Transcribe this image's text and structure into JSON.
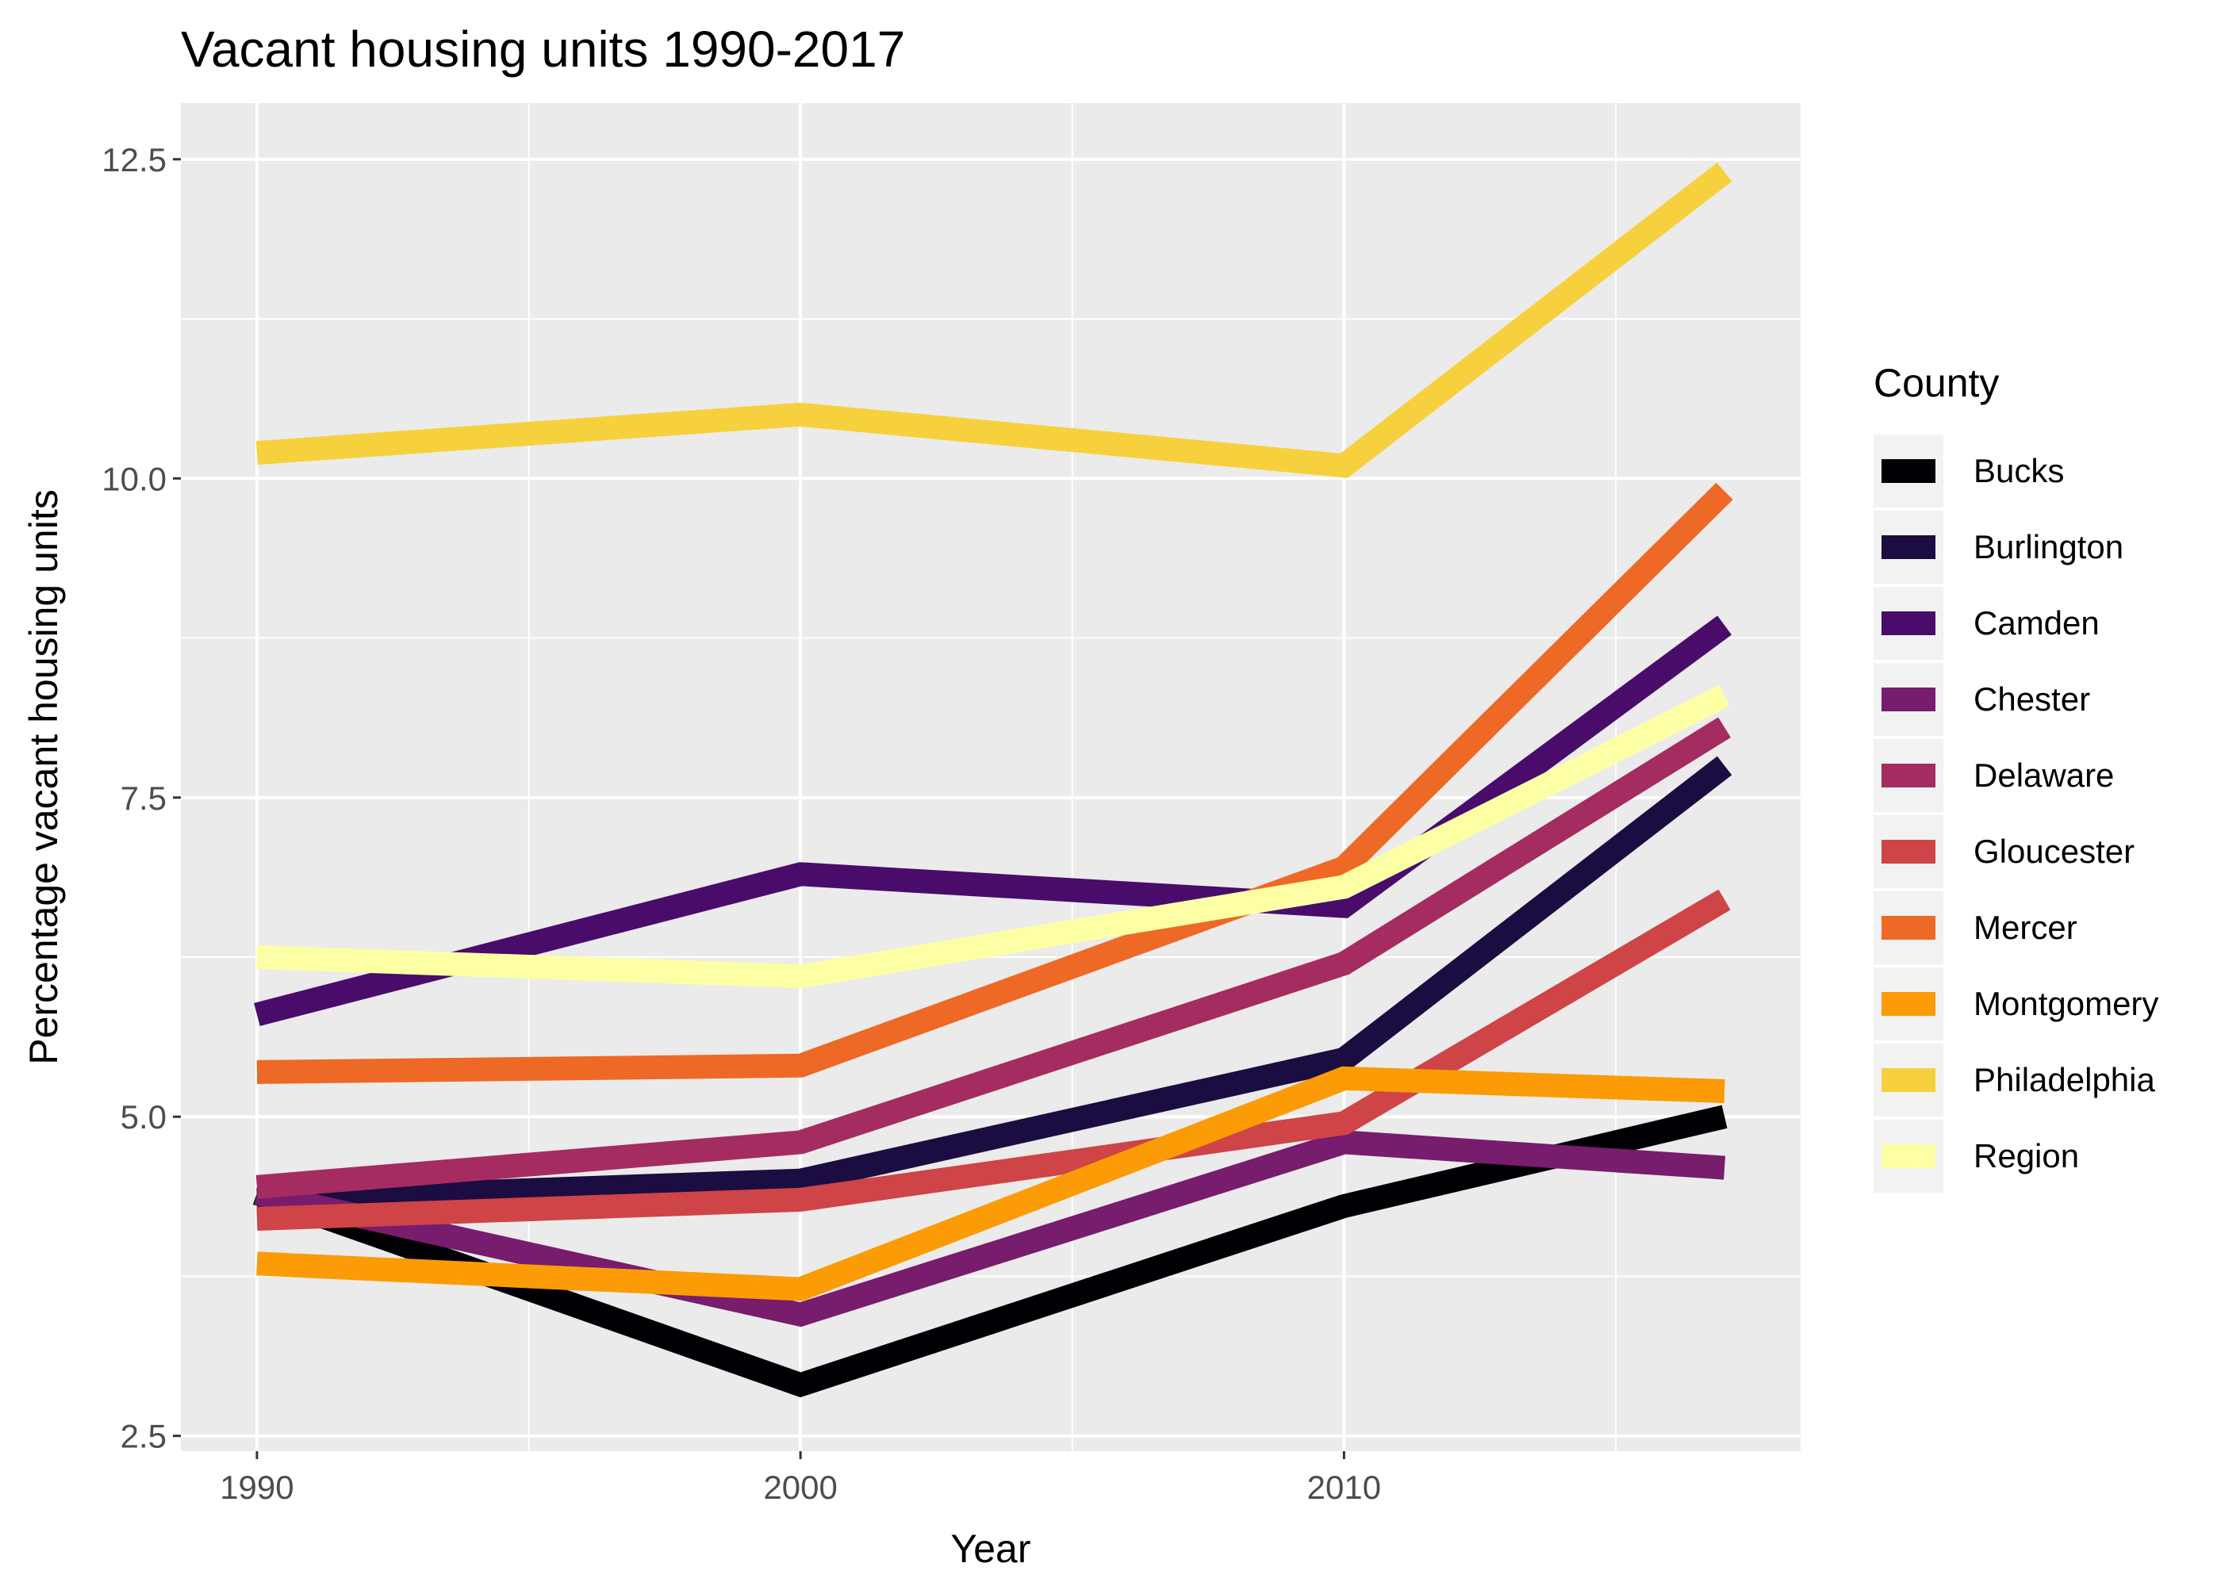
{
  "chart_data": {
    "type": "line",
    "title": "Vacant housing units 1990-2017",
    "xlabel": "Year",
    "ylabel": "Percentage vacant housing units",
    "xlim": [
      1988.6,
      2018.4
    ],
    "ylim": [
      2.38,
      12.94
    ],
    "x_ticks": [
      1990,
      2000,
      2010
    ],
    "x_tick_labels": [
      "1990",
      "2000",
      "2010"
    ],
    "x_minor_ticks": [
      1995,
      2005,
      2015
    ],
    "y_ticks": [
      2.5,
      5.0,
      7.5,
      10.0,
      12.5
    ],
    "y_tick_labels": [
      "2.5",
      "5.0",
      "7.5",
      "10.0",
      "12.5"
    ],
    "y_minor_ticks": [
      3.75,
      6.25,
      8.75,
      11.25
    ],
    "grid": true,
    "panel_background": "#ebebeb",
    "legend_title": "County",
    "legend_position": "right",
    "x": [
      1990,
      2000,
      2010,
      2017
    ],
    "series": [
      {
        "name": "Bucks",
        "color": "#000004",
        "values": [
          4.4,
          2.9,
          4.3,
          5.0
        ]
      },
      {
        "name": "Burlington",
        "color": "#1b0c41",
        "values": [
          4.35,
          4.5,
          5.45,
          7.75
        ]
      },
      {
        "name": "Camden",
        "color": "#4a0c6b",
        "values": [
          5.8,
          6.9,
          6.65,
          8.85
        ]
      },
      {
        "name": "Chester",
        "color": "#781c6d",
        "values": [
          4.4,
          3.45,
          4.8,
          4.6
        ]
      },
      {
        "name": "Delaware",
        "color": "#a52c60",
        "values": [
          4.45,
          4.8,
          6.2,
          8.05
        ]
      },
      {
        "name": "Gloucester",
        "color": "#cf4446",
        "values": [
          4.2,
          4.35,
          4.95,
          6.7
        ]
      },
      {
        "name": "Mercer",
        "color": "#ed6925",
        "values": [
          5.35,
          5.4,
          6.95,
          9.9
        ]
      },
      {
        "name": "Montgomery",
        "color": "#fb9b06",
        "values": [
          3.85,
          3.65,
          5.3,
          5.2
        ]
      },
      {
        "name": "Philadelphia",
        "color": "#f7d13d",
        "values": [
          10.2,
          10.5,
          10.1,
          12.4
        ]
      },
      {
        "name": "Region",
        "color": "#fcffa4",
        "values": [
          6.25,
          6.1,
          6.8,
          8.3
        ]
      }
    ]
  }
}
